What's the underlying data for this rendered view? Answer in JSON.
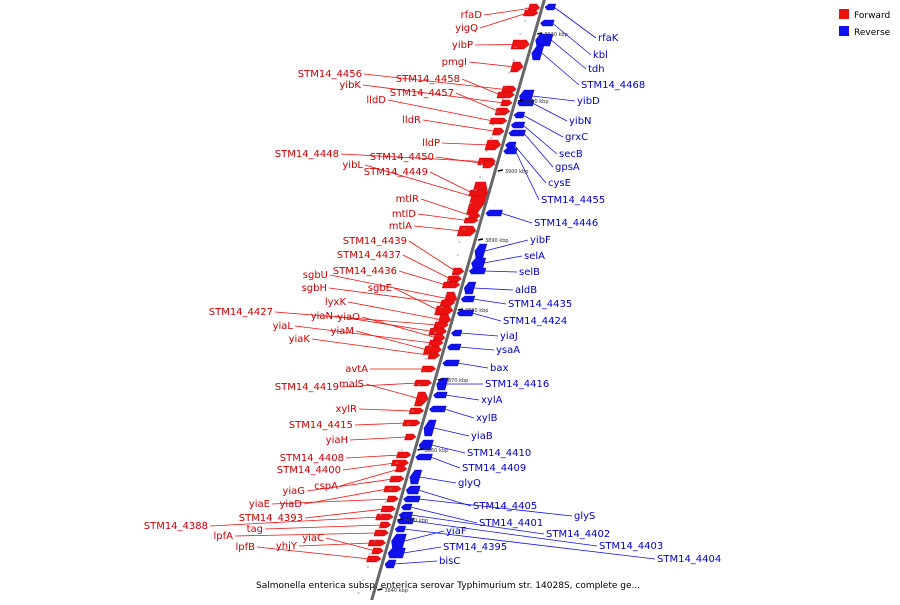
{
  "caption": "Salmonella enterica subsp. enterica serovar Typhimurium str. 14028S, complete ge...",
  "legend": [
    {
      "label": "Forward",
      "color": "#ee1111"
    },
    {
      "label": "Reverse",
      "color": "#1111ee"
    }
  ],
  "colors": {
    "forward": "#ee1111",
    "reverse": "#1111ee",
    "backbone": "#666666"
  },
  "kbp_marks": [
    "3920 kbp",
    "3910 kbp",
    "3900 kbp",
    "3890 kbp",
    "3880 kbp",
    "3870 kbp",
    "3860 kbp",
    "3850 kbp",
    "3840 kbp"
  ],
  "forward_genes": [
    "rfaD",
    "yigQ",
    "yibP",
    "pmgI",
    "STM14_4456",
    "STM14_4458",
    "yibK",
    "STM14_4457",
    "lldD",
    "lldR",
    "lldP",
    "STM14_4448",
    "STM14_4450",
    "yibL",
    "STM14_4449",
    "mtlR",
    "mtlD",
    "mtlA",
    "STM14_4439",
    "STM14_4437",
    "STM14_4436",
    "sgbU",
    "sgbH",
    "sgbE",
    "lyxK",
    "STM14_4427",
    "yiaN",
    "yiaO",
    "yiaL",
    "yiaM",
    "yiaK",
    "avtA",
    "STM14_4419",
    "malS",
    "xylR",
    "STM14_4415",
    "yiaH",
    "STM14_4408",
    "STM14_4400",
    "cspA",
    "yiaG",
    "yiaD",
    "yiaE",
    "STM14_4393",
    "STM14_4388",
    "tag",
    "lpfA",
    "yhjY",
    "yiaC",
    "lpfB"
  ],
  "reverse_genes": [
    "rfaK",
    "kbl",
    "tdh",
    "STM14_4468",
    "yibD",
    "yibN",
    "grxC",
    "secB",
    "gpsA",
    "cysE",
    "STM14_4455",
    "STM14_4446",
    "yibF",
    "selA",
    "selB",
    "aldB",
    "STM14_4435",
    "STM14_4424",
    "yiaJ",
    "ysaA",
    "bax",
    "STM14_4416",
    "xylA",
    "xylB",
    "yiaB",
    "STM14_4410",
    "STM14_4409",
    "glyQ",
    "STM14_4405",
    "glyS",
    "STM14_4401",
    "STM14_4402",
    "STM14_4403",
    "STM14_4404",
    "yiaF",
    "STM14_4395",
    "bisC"
  ]
}
